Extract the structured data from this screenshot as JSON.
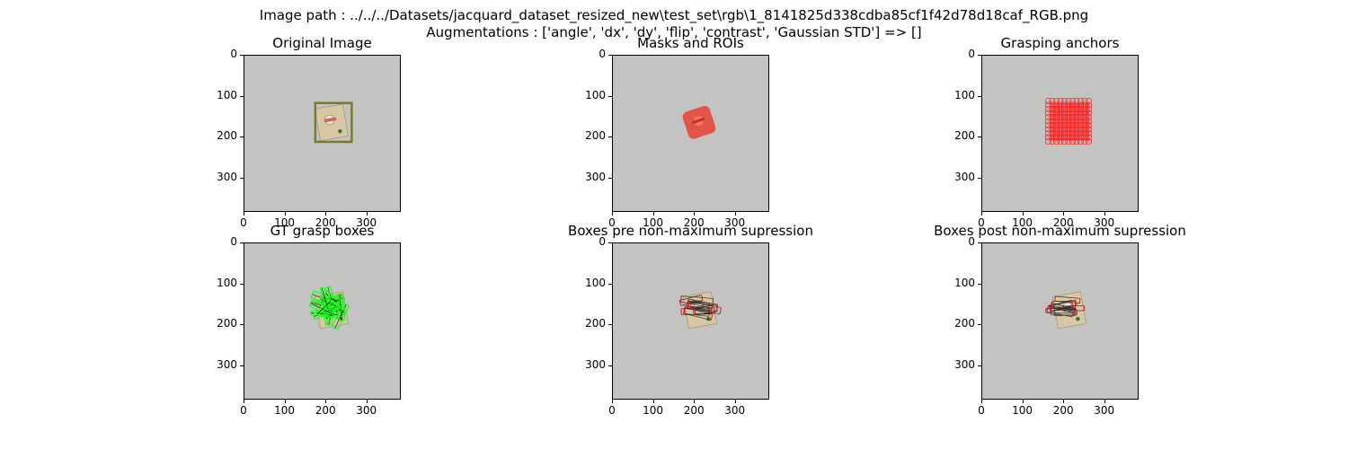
{
  "figure": {
    "suptitle_line1": "Image path : ../../../Datasets/jacquard_dataset_resized_new\\test_set\\rgb\\1_8141825d338cdba85cf1f42d78d18caf_RGB.png",
    "suptitle_line2": "Augmentations : ['angle', 'dx', 'dy', 'flip', 'contrast', 'Gaussian STD'] => []"
  },
  "colors": {
    "background_gray": "#c3c3c1",
    "roi_box": "#7a7a2a",
    "mask_red": "#e8473a",
    "anchor_red": "#ff1a1a",
    "gt_green": "#1aff1a",
    "grasp_red": "#e02020",
    "grasp_dark": "#2b2b2b"
  },
  "chart_data": [
    {
      "type": "image",
      "title": "Original Image",
      "xticks": [
        "0",
        "100",
        "200",
        "300"
      ],
      "yticks": [
        "0",
        "100",
        "200",
        "300"
      ],
      "xlim": [
        0,
        384
      ],
      "ylim": [
        384,
        0
      ],
      "overlays": [
        {
          "kind": "roi_box",
          "x0": 175,
          "y0": 117,
          "x1": 265,
          "y1": 213
        }
      ]
    },
    {
      "type": "image",
      "title": "Masks and ROIs",
      "xticks": [
        "0",
        "100",
        "200",
        "300"
      ],
      "yticks": [
        "0",
        "100",
        "200",
        "300"
      ],
      "xlim": [
        0,
        384
      ],
      "ylim": [
        384,
        0
      ],
      "overlays": [
        {
          "kind": "mask",
          "cx": 213,
          "cy": 165,
          "size": 70,
          "angle": -18
        }
      ]
    },
    {
      "type": "image",
      "title": "Grasping anchors",
      "xticks": [
        "0",
        "100",
        "200",
        "300"
      ],
      "yticks": [
        "0",
        "100",
        "200",
        "300"
      ],
      "xlim": [
        0,
        384
      ],
      "ylim": [
        384,
        0
      ],
      "overlays": [
        {
          "kind": "anchors",
          "x0": 163,
          "y0": 112,
          "x1": 270,
          "y1": 215,
          "step": 10
        }
      ]
    },
    {
      "type": "image",
      "title": "GT grasp boxes",
      "xticks": [
        "0",
        "100",
        "200",
        "300"
      ],
      "yticks": [
        "0",
        "100",
        "200",
        "300"
      ],
      "xlim": [
        0,
        384
      ],
      "ylim": [
        384,
        0
      ],
      "overlays": [
        {
          "kind": "gt_boxes",
          "cx": 215,
          "cy": 160,
          "spread": 40,
          "count": 28
        }
      ]
    },
    {
      "type": "image",
      "title": "Boxes pre non-maximum supression",
      "xticks": [
        "0",
        "100",
        "200",
        "300"
      ],
      "yticks": [
        "0",
        "100",
        "200",
        "300"
      ],
      "xlim": [
        0,
        384
      ],
      "ylim": [
        384,
        0
      ],
      "overlays": [
        {
          "kind": "grasp_boxes",
          "cx": 210,
          "cy": 158,
          "count": 12
        }
      ]
    },
    {
      "type": "image",
      "title": "Boxes post non-maximum supression",
      "xticks": [
        "0",
        "100",
        "200",
        "300"
      ],
      "yticks": [
        "0",
        "100",
        "200",
        "300"
      ],
      "xlim": [
        0,
        384
      ],
      "ylim": [
        384,
        0
      ],
      "overlays": [
        {
          "kind": "grasp_boxes",
          "cx": 210,
          "cy": 158,
          "count": 10
        }
      ]
    }
  ]
}
